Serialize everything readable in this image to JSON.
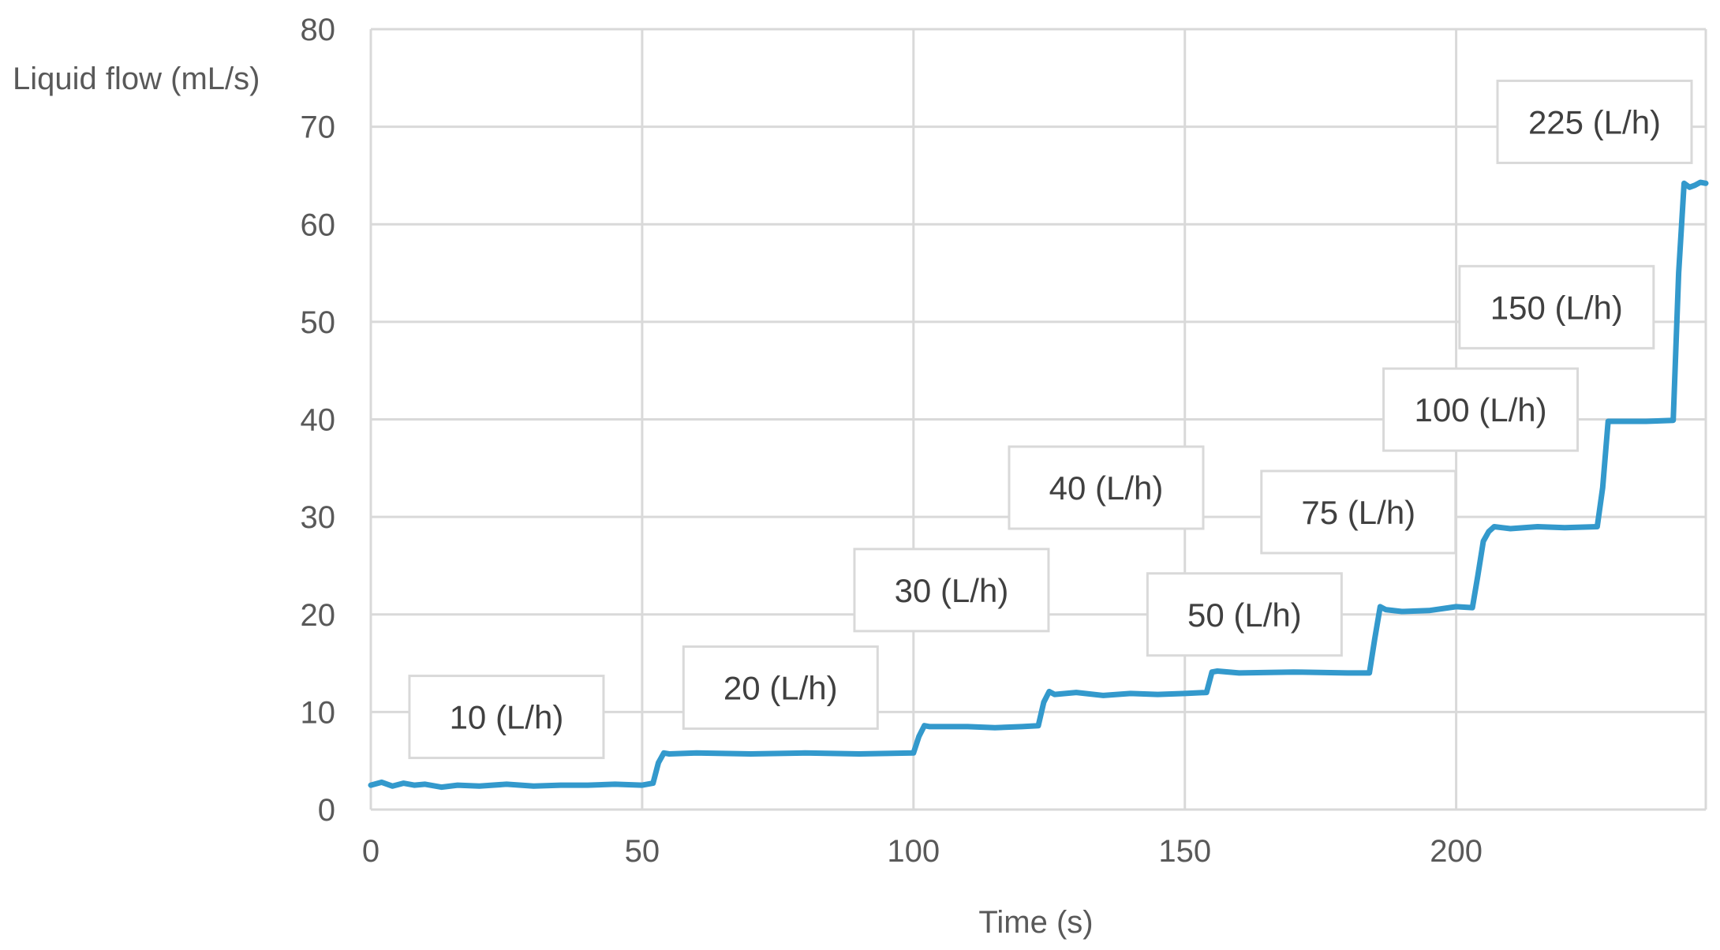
{
  "chart_data": {
    "type": "line",
    "xlabel": "Time (s)",
    "ylabel": "Liquid flow (mL/s)",
    "xlim": [
      0,
      246
    ],
    "ylim": [
      0,
      80
    ],
    "x_ticks": [
      0,
      50,
      100,
      150,
      200
    ],
    "y_ticks": [
      0,
      10,
      20,
      30,
      40,
      50,
      60,
      70,
      80
    ],
    "grid": true,
    "line_color": "#3399CC",
    "series": [
      {
        "x": [
          0,
          2,
          4,
          6,
          8,
          10,
          13,
          16,
          20,
          25,
          30,
          35,
          40,
          45,
          50,
          52,
          53,
          54,
          55,
          60,
          70,
          80,
          90,
          100,
          101,
          102,
          103,
          110,
          115,
          120,
          123,
          124,
          125,
          126,
          130,
          135,
          140,
          145,
          150,
          154,
          155,
          156,
          160,
          170,
          180,
          184,
          185,
          186,
          187,
          190,
          195,
          200,
          203,
          204,
          205,
          206,
          207,
          210,
          215,
          220,
          226,
          227,
          228,
          235,
          240,
          241,
          242,
          243,
          244,
          245,
          246
        ],
        "y": [
          2.5,
          2.8,
          2.4,
          2.7,
          2.5,
          2.6,
          2.3,
          2.5,
          2.4,
          2.6,
          2.4,
          2.5,
          2.5,
          2.6,
          2.5,
          2.7,
          4.8,
          5.8,
          5.7,
          5.8,
          5.7,
          5.8,
          5.7,
          5.8,
          7.5,
          8.6,
          8.5,
          8.5,
          8.4,
          8.5,
          8.6,
          11.0,
          12.1,
          11.8,
          12.0,
          11.7,
          11.9,
          11.8,
          11.9,
          12.0,
          14.1,
          14.2,
          14.0,
          14.1,
          14.0,
          14.0,
          17.5,
          20.8,
          20.5,
          20.3,
          20.4,
          20.8,
          20.7,
          24.0,
          27.5,
          28.5,
          29.0,
          28.8,
          29.0,
          28.9,
          29.0,
          33.0,
          39.8,
          39.8,
          39.9,
          55.0,
          64.2,
          63.8,
          64.0,
          64.3,
          64.2
        ]
      }
    ],
    "annotations": [
      {
        "text": "10 (L/h)",
        "x": 25,
        "y": 9.5
      },
      {
        "text": "20 (L/h)",
        "x": 75.5,
        "y": 12.5
      },
      {
        "text": "30 (L/h)",
        "x": 107,
        "y": 22.5
      },
      {
        "text": "40 (L/h)",
        "x": 135.5,
        "y": 33.0
      },
      {
        "text": "50 (L/h)",
        "x": 161,
        "y": 20.0
      },
      {
        "text": "75 (L/h)",
        "x": 182,
        "y": 30.5
      },
      {
        "text": "100 (L/h)",
        "x": 204.5,
        "y": 41.0
      },
      {
        "text": "150 (L/h)",
        "x": 218.5,
        "y": 51.5
      },
      {
        "text": "225 (L/h)",
        "x": 225.5,
        "y": 70.5
      }
    ]
  }
}
